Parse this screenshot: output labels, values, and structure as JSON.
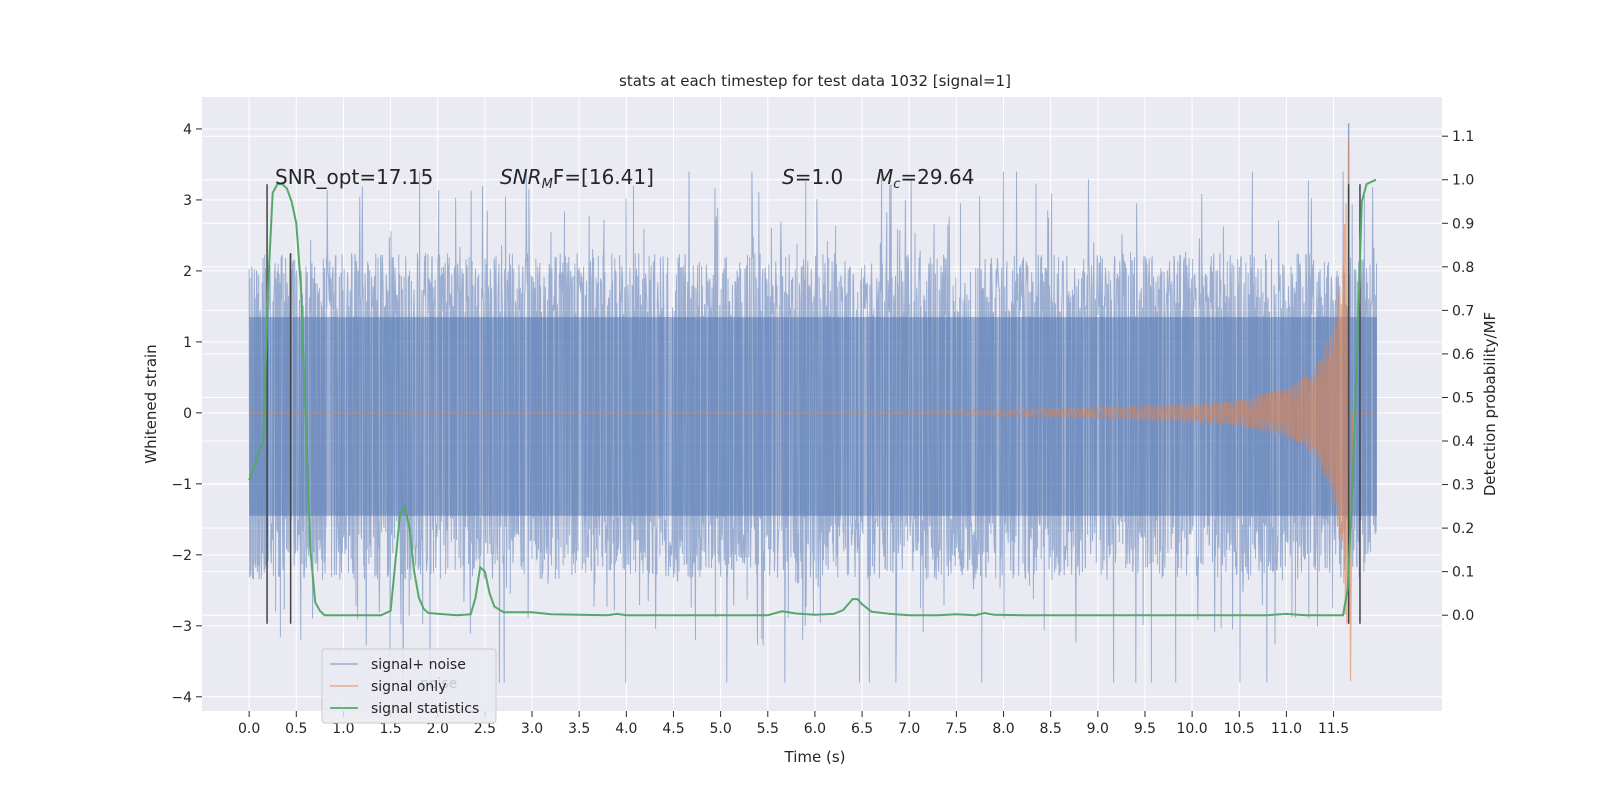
{
  "chart_data": {
    "type": "line",
    "title": "stats at each timestep for test data 1032 [signal=1]",
    "xlabel": "Time (s)",
    "ylabel_left": "Whitened strain",
    "ylabel_right": "Detection probability/MF",
    "xlim": [
      -0.5,
      12.65
    ],
    "ylim_left": [
      -4.2,
      4.45
    ],
    "ylim_right": [
      -0.22,
      1.19
    ],
    "x_ticks": [
      "0.0",
      "0.5",
      "1.0",
      "1.5",
      "2.0",
      "2.5",
      "3.0",
      "3.5",
      "4.0",
      "4.5",
      "5.0",
      "5.5",
      "6.0",
      "6.5",
      "7.0",
      "7.5",
      "8.0",
      "8.5",
      "9.0",
      "9.5",
      "10.0",
      "10.5",
      "11.0",
      "11.5"
    ],
    "y_left_ticks": [
      "4",
      "3",
      "2",
      "1",
      "0",
      "−1",
      "−2",
      "−3",
      "−4"
    ],
    "y_right_ticks": [
      "1.1",
      "1.0",
      "0.9",
      "0.8",
      "0.7",
      "0.6",
      "0.5",
      "0.4",
      "0.3",
      "0.2",
      "0.1",
      "0.0"
    ],
    "grid": true,
    "legend_position": "lower-left",
    "colors": {
      "signal_plus_noise": "#4c72b0",
      "signal_only": "#dd8452",
      "signal_statistics": "#55a868",
      "markers": "#444444",
      "plot_bg": "#eaeaf2",
      "grid": "#ffffff"
    },
    "annotations": {
      "snr_opt": "SNR_opt=17.15",
      "snr_mf_label": "SNR",
      "snr_mf_sub": "M",
      "snr_mf_rest": "F=[16.41]",
      "s_label": "S",
      "s_value": "=1.0",
      "mc_label": "M",
      "mc_sub": "c",
      "mc_value": "=29.64"
    },
    "series": [
      {
        "name": "signal+ noise",
        "axis": "left",
        "envelope_upper": 1.35,
        "envelope_lower": -1.45,
        "spike_range": [
          -3.8,
          3.4
        ],
        "peak": 4.08,
        "peak_time": 11.66
      },
      {
        "name": "signal only",
        "axis": "left",
        "note_amplitude_points": [
          [
            0.0,
            0.0
          ],
          [
            7.0,
            0.02
          ],
          [
            8.0,
            0.05
          ],
          [
            9.0,
            0.08
          ],
          [
            10.0,
            0.12
          ],
          [
            10.5,
            0.18
          ],
          [
            11.0,
            0.35
          ],
          [
            11.3,
            0.6
          ],
          [
            11.5,
            1.2
          ],
          [
            11.6,
            2.2
          ],
          [
            11.66,
            3.85
          ],
          [
            11.68,
            -3.78
          ],
          [
            11.7,
            0.0
          ]
        ]
      },
      {
        "name": "signal statistics",
        "axis": "right",
        "points": [
          [
            0.0,
            0.31
          ],
          [
            0.05,
            0.34
          ],
          [
            0.1,
            0.37
          ],
          [
            0.15,
            0.4
          ],
          [
            0.2,
            0.75
          ],
          [
            0.25,
            0.97
          ],
          [
            0.3,
            0.99
          ],
          [
            0.35,
            0.99
          ],
          [
            0.4,
            0.98
          ],
          [
            0.45,
            0.95
          ],
          [
            0.5,
            0.9
          ],
          [
            0.55,
            0.75
          ],
          [
            0.6,
            0.45
          ],
          [
            0.65,
            0.15
          ],
          [
            0.7,
            0.03
          ],
          [
            0.75,
            0.01
          ],
          [
            0.8,
            0.0
          ],
          [
            1.0,
            0.0
          ],
          [
            1.4,
            0.0
          ],
          [
            1.5,
            0.01
          ],
          [
            1.55,
            0.12
          ],
          [
            1.6,
            0.23
          ],
          [
            1.65,
            0.25
          ],
          [
            1.7,
            0.2
          ],
          [
            1.75,
            0.1
          ],
          [
            1.8,
            0.04
          ],
          [
            1.85,
            0.015
          ],
          [
            1.9,
            0.005
          ],
          [
            2.2,
            0.0
          ],
          [
            2.35,
            0.002
          ],
          [
            2.4,
            0.04
          ],
          [
            2.45,
            0.11
          ],
          [
            2.5,
            0.1
          ],
          [
            2.55,
            0.05
          ],
          [
            2.6,
            0.02
          ],
          [
            2.7,
            0.007
          ],
          [
            3.0,
            0.007
          ],
          [
            3.2,
            0.002
          ],
          [
            3.5,
            0.001
          ],
          [
            3.8,
            0.0
          ],
          [
            3.9,
            0.003
          ],
          [
            4.0,
            0.0
          ],
          [
            5.5,
            0.0
          ],
          [
            5.65,
            0.009
          ],
          [
            5.8,
            0.004
          ],
          [
            6.0,
            0.001
          ],
          [
            6.2,
            0.003
          ],
          [
            6.3,
            0.012
          ],
          [
            6.4,
            0.037
          ],
          [
            6.45,
            0.037
          ],
          [
            6.5,
            0.025
          ],
          [
            6.6,
            0.008
          ],
          [
            6.8,
            0.003
          ],
          [
            7.0,
            0.0
          ],
          [
            7.3,
            0.0
          ],
          [
            7.5,
            0.002
          ],
          [
            7.7,
            0.0
          ],
          [
            7.8,
            0.005
          ],
          [
            7.9,
            0.001
          ],
          [
            8.2,
            0.0
          ],
          [
            10.8,
            0.0
          ],
          [
            11.0,
            0.003
          ],
          [
            11.2,
            0.0
          ],
          [
            11.6,
            0.0
          ],
          [
            11.65,
            0.06
          ],
          [
            11.7,
            0.3
          ],
          [
            11.75,
            0.6
          ],
          [
            11.8,
            0.95
          ],
          [
            11.85,
            0.99
          ],
          [
            11.95,
            1.0
          ]
        ]
      }
    ],
    "vertical_lines": [
      {
        "x": 0.19,
        "ymin": -2.97,
        "ymax": 3.22
      },
      {
        "x": 0.44,
        "ymin": -2.97,
        "ymax": 2.25
      },
      {
        "x": 11.66,
        "ymin": -2.97,
        "ymax": 3.22
      },
      {
        "x": 11.78,
        "ymin": -2.97,
        "ymax": 3.22
      }
    ]
  },
  "legend": {
    "items": [
      "signal+ noise",
      "signal only",
      "signal statistics"
    ],
    "ghost_text": "noise"
  }
}
